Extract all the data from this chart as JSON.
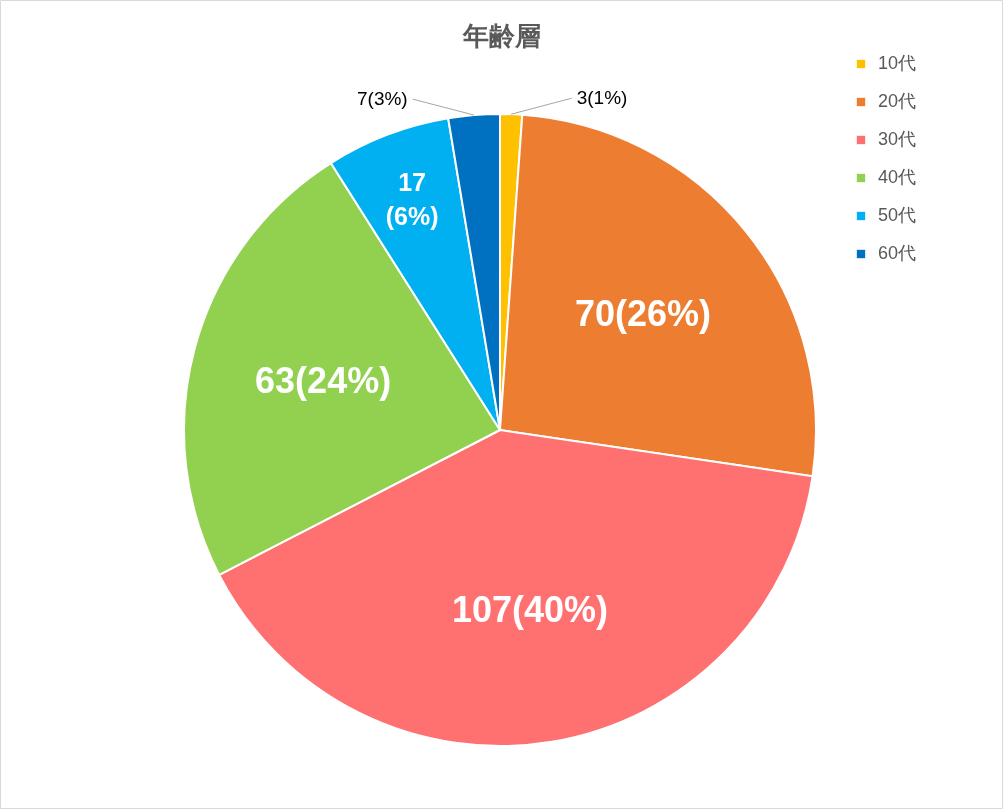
{
  "chart_data": {
    "type": "pie",
    "title": "年齢層",
    "categories": [
      "10代",
      "20代",
      "30代",
      "40代",
      "50代",
      "60代"
    ],
    "values": [
      3,
      70,
      107,
      63,
      17,
      7
    ],
    "colors": [
      "#ffc000",
      "#ed7d31",
      "#ff7070",
      "#92d050",
      "#00b0f0",
      "#0070c0"
    ],
    "value_labels": [
      "3(1%)",
      "70(26%)",
      "107(40%)",
      "63(24%)",
      "17\n(6%)",
      "7(3%)"
    ],
    "legend": "top right"
  }
}
